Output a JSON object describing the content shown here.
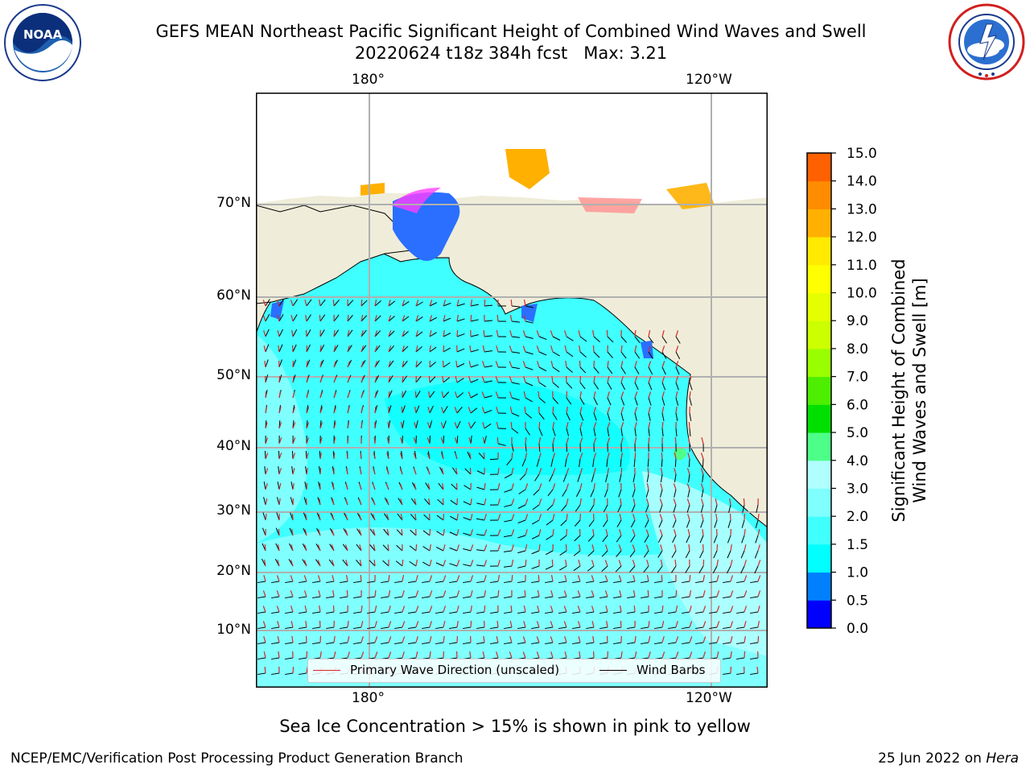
{
  "title": {
    "line1": "GEFS MEAN Northeast Pacific Significant Height of Combined Wind Waves and Swell",
    "line2": "20220624 t18z 384h fcst   Max: 3.21"
  },
  "logos": {
    "left": {
      "name": "NOAA",
      "text": "NOAA",
      "ring_text": "NATIONAL OCEANIC AND ATMOSPHERIC ADMINISTRATION · U.S. DEPARTMENT OF COMMERCE"
    },
    "right": {
      "name": "National Weather Service",
      "ring_text": "NATIONAL WEATHER SERVICE"
    }
  },
  "map": {
    "lon_labels_top": [
      "180°",
      "120°W"
    ],
    "lon_labels_bottom": [
      "180°",
      "120°W"
    ],
    "lat_labels": [
      "70°N",
      "60°N",
      "50°N",
      "40°N",
      "30°N",
      "20°N",
      "10°N"
    ],
    "land_color": "#efedd9",
    "legend": {
      "wave_label": "Primary Wave Direction (unscaled)",
      "wave_color": "#d62728",
      "wind_label": "Wind Barbs",
      "wind_color": "#000000"
    }
  },
  "colorbar": {
    "title_line1": "Significant Height of Combined",
    "title_line2": "Wind Waves and Swell [m]",
    "ticks": [
      "15.0",
      "14.0",
      "13.0",
      "12.0",
      "11.0",
      "10.0",
      "9.0",
      "8.0",
      "7.0",
      "6.0",
      "5.0",
      "4.0",
      "3.0",
      "2.0",
      "1.5",
      "1.0",
      "0.5",
      "0.0"
    ],
    "colors_bottom_to_top": [
      "#0000ff",
      "#0080ff",
      "#00ffff",
      "#40ffff",
      "#80ffff",
      "#b0ffff",
      "#4dff88",
      "#00e000",
      "#4dee00",
      "#99ff00",
      "#ccff00",
      "#e5ff00",
      "#ffff00",
      "#ffea00",
      "#ffb000",
      "#ff8c00",
      "#ff6000",
      "#ff3000",
      "#ff0000"
    ]
  },
  "bottom_note": "Sea Ice Concentration > 15% is shown in pink to yellow",
  "footer": {
    "left": "NCEP/EMC/Verification Post Processing Product Generation Branch",
    "right_date": "25 Jun 2022 on ",
    "right_host": "Hera"
  }
}
